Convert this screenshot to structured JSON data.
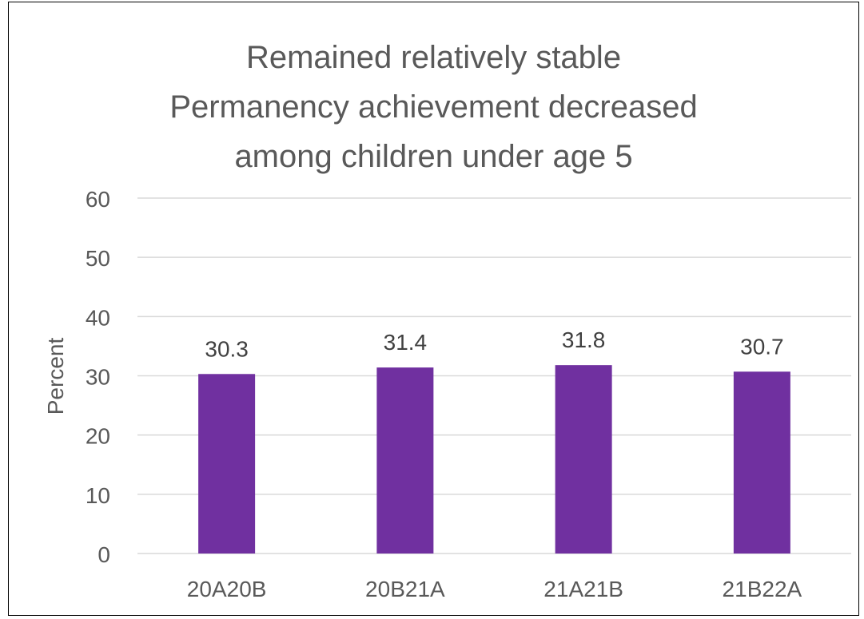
{
  "chart_data": {
    "type": "bar",
    "title_lines": [
      "Remained relatively stable",
      "Permanency achievement decreased",
      "among children under age 5"
    ],
    "xlabel": "",
    "ylabel": "Percent",
    "categories": [
      "20A20B",
      "20B21A",
      "21A21B",
      "21B22A"
    ],
    "values": [
      30.3,
      31.4,
      31.8,
      30.7
    ],
    "data_labels": [
      "30.3",
      "31.4",
      "31.8",
      "30.7"
    ],
    "ylim": [
      0,
      60
    ],
    "yticks": [
      "0",
      "10",
      "20",
      "30",
      "40",
      "50",
      "60"
    ],
    "grid": true,
    "legend": "none",
    "colors": {
      "bar": "#7030A0",
      "grid": "#D9D9D9",
      "text": "#595959",
      "label": "#404040"
    }
  }
}
